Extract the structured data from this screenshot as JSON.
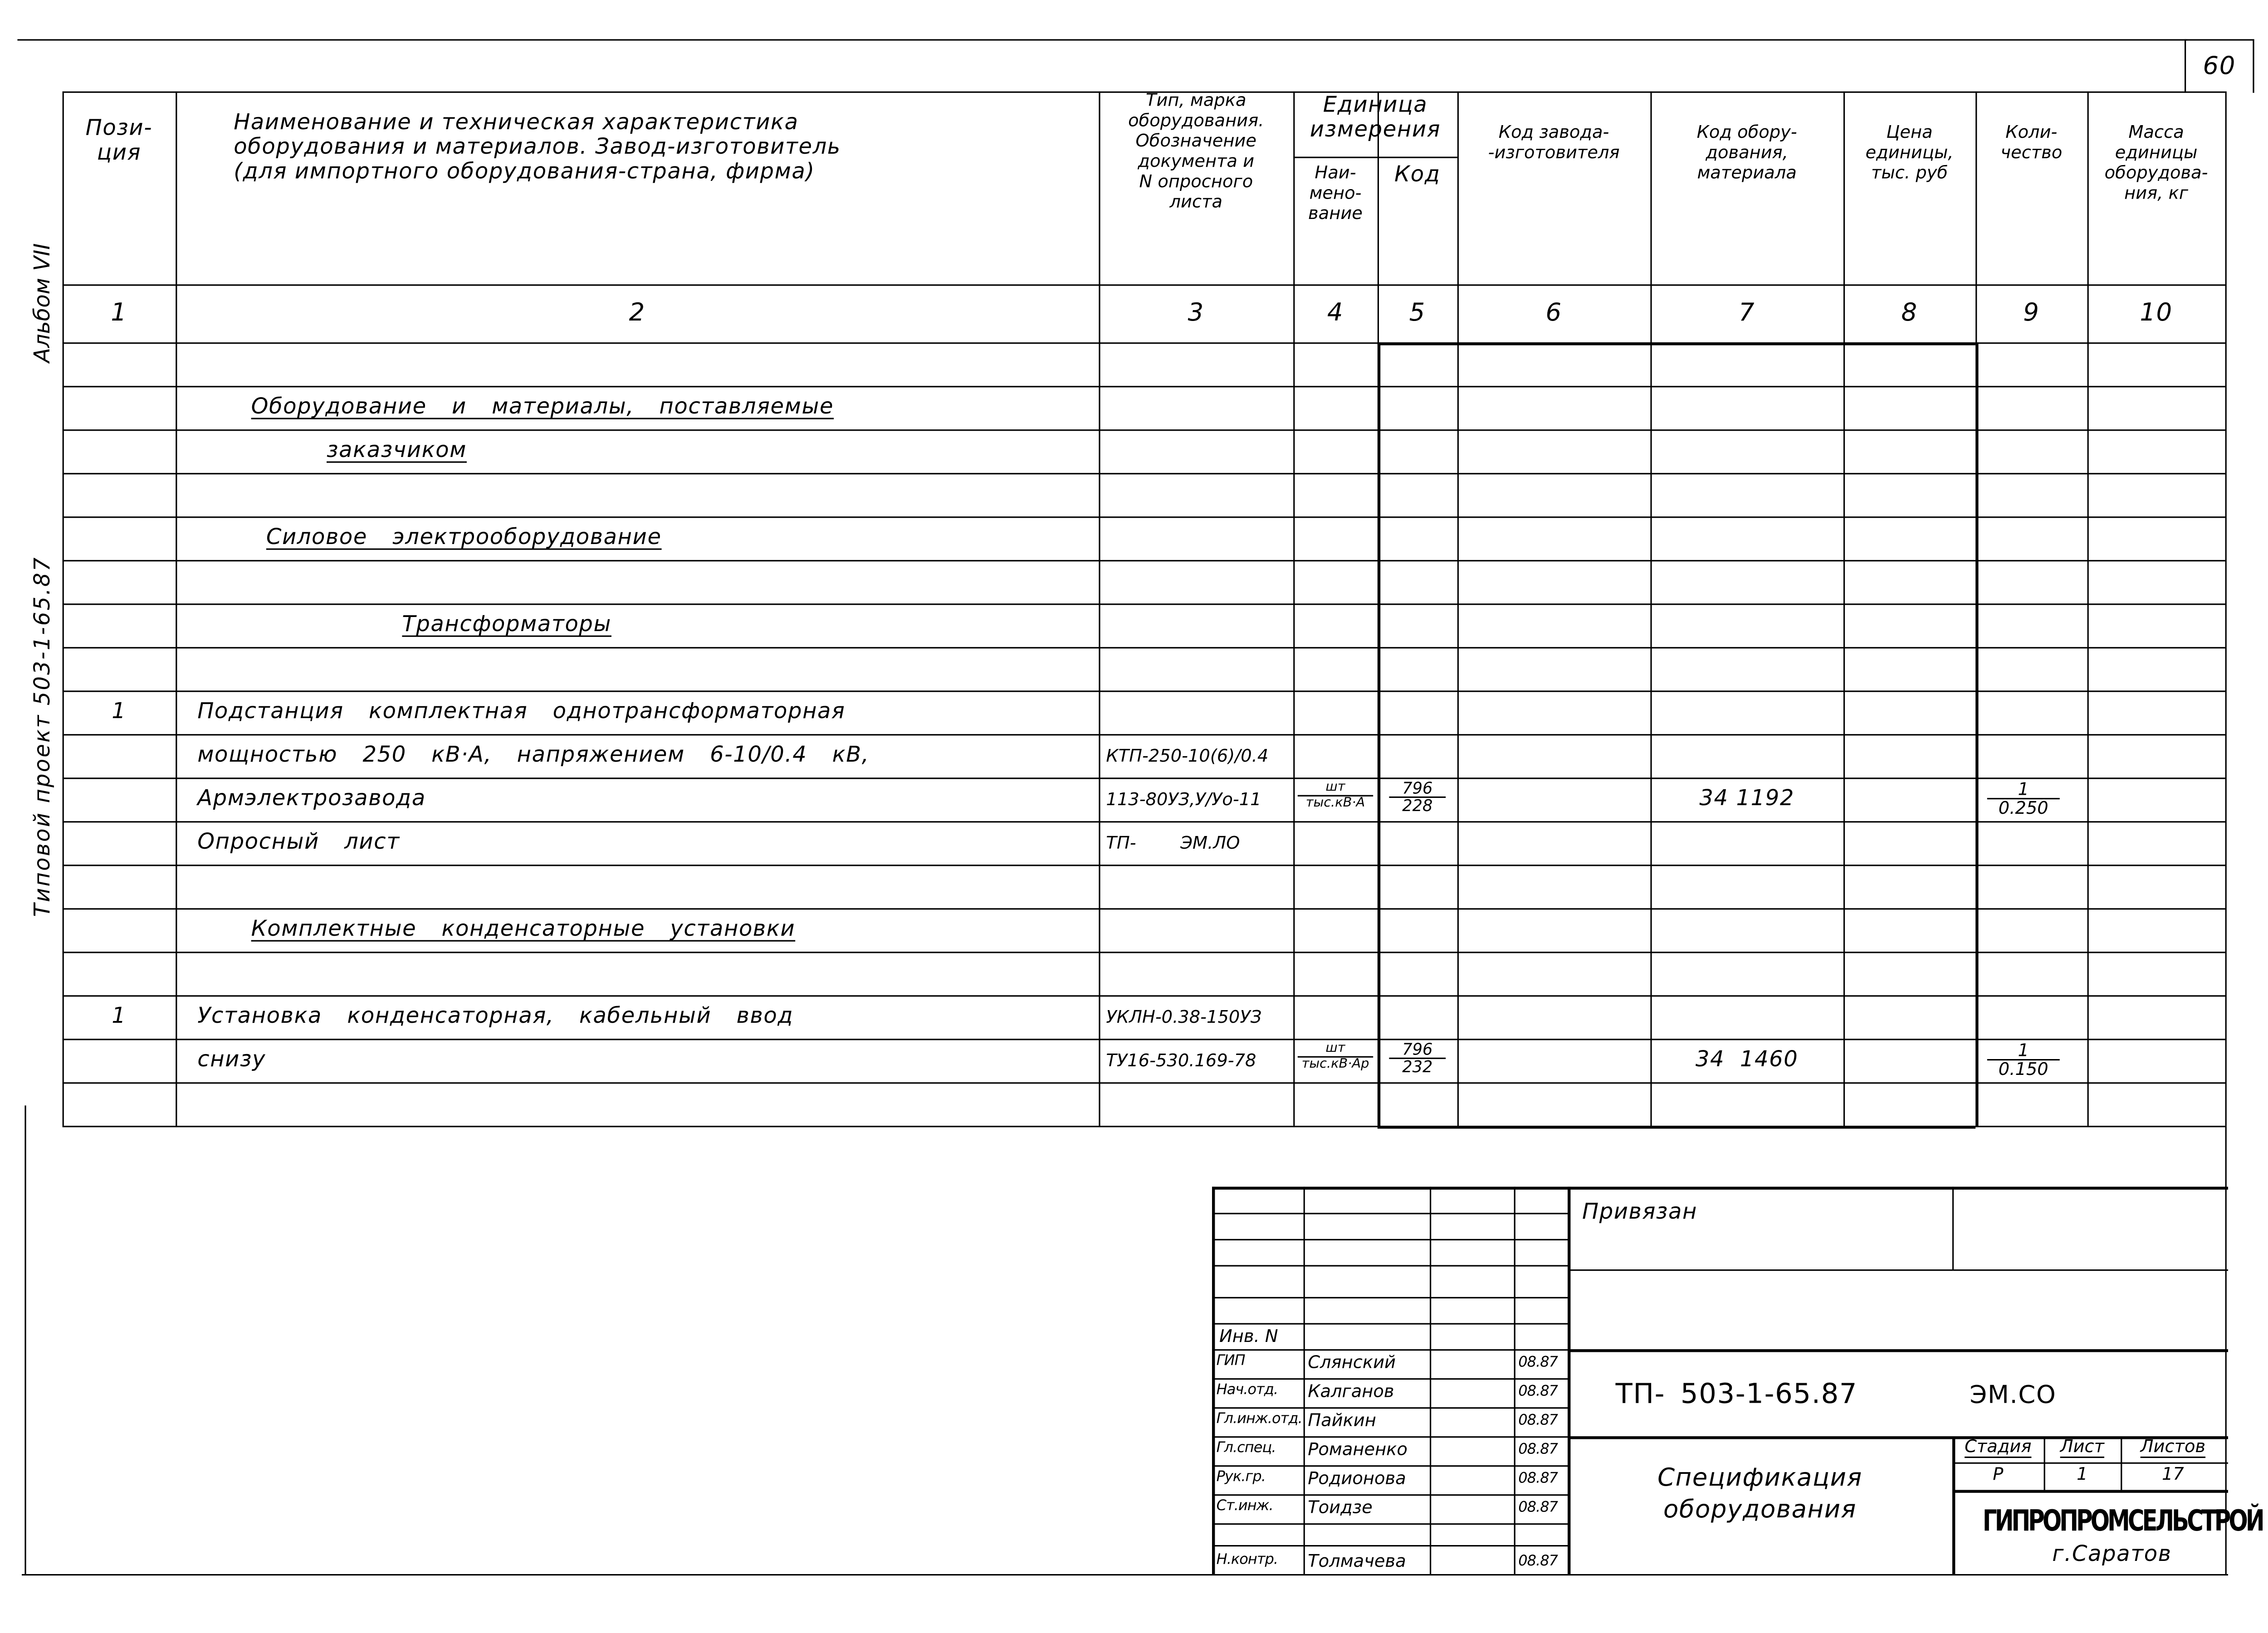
{
  "sheet_number": "60",
  "margin": {
    "album": "Альбом VII",
    "project": "Типовой проект 503-1-65.87"
  },
  "headers": [
    "Пози-\nция",
    "Наименование и техническая характеристика\nоборудования и материалов. Завод-изготовитель\n(для импортного оборудования-страна, фирма)",
    "Тип, марка\nоборудования.\nОбозначение\nдокумента и\nN опросного\nлиста",
    "Единица\nизмерения",
    "Наи-\nмено-\nвание",
    "Код",
    "Код завода-\n-изготовителя",
    "Код обору-\nдования,\nматериала",
    "Цена\nединицы,\nтыс. руб",
    "Коли-\nчество",
    "Масса\nединицы\nоборудова-\nния, кг"
  ],
  "column_numbers": [
    "1",
    "2",
    "3",
    "4",
    "5",
    "6",
    "7",
    "8",
    "9",
    "10"
  ],
  "rows": [
    {},
    {
      "name": "Оборудование и материалы, поставляемые",
      "style": "heading",
      "indent": 1
    },
    {
      "name": "заказчиком",
      "style": "heading",
      "indent": 2
    },
    {},
    {
      "name": "Силовое электрооборудование",
      "style": "heading",
      "indent": 1.2
    },
    {},
    {
      "name": "Трансформаторы",
      "style": "heading",
      "indent": 3
    },
    {},
    {
      "pos": "1",
      "name": "Подстанция комплектная однотрансформаторная"
    },
    {
      "name": "мощностью 250 кВ·А, напряжением 6-10/0.4 кВ,",
      "type": "КТП-250-10(6)/0.4"
    },
    {
      "name": "Армэлектрозавода",
      "type": "113-80УЗ,У/Уо-11",
      "unit": [
        "шт",
        "тыс.кВ·А"
      ],
      "code": [
        "796",
        "228"
      ],
      "equip_code": "34 1192",
      "qty": [
        "1",
        "0.250"
      ]
    },
    {
      "name": "Опросный лист",
      "type": "ТП-        ЭМ.ЛО"
    },
    {},
    {
      "name": "Комплектные конденсаторные установки",
      "style": "heading",
      "indent": 1
    },
    {},
    {
      "pos": "1",
      "name": "Установка конденсаторная, кабельный ввод",
      "type": "УКЛН-0.38-150УЗ"
    },
    {
      "name": "снизу",
      "type": "ТУ16-530.169-78",
      "unit": [
        "шт",
        "тыс.кВ·Ар"
      ],
      "code": [
        "796",
        "232"
      ],
      "equip_code": "34  1460",
      "qty": [
        "1",
        "0.150"
      ]
    },
    {}
  ],
  "title_block": {
    "inv_label": "Инв. N",
    "bound_label": "Привязан",
    "signatures": [
      {
        "role": "ГИП",
        "name": "Слянский",
        "date": "08.87"
      },
      {
        "role": "Нач.отд.",
        "name": "Калганов",
        "date": "08.87"
      },
      {
        "role": "Гл.инж.отд.",
        "name": "Пайкин",
        "date": "08.87"
      },
      {
        "role": "Гл.спец.",
        "name": "Романенко",
        "date": "08.87"
      },
      {
        "role": "Рук.гр.",
        "name": "Родионова",
        "date": "08.87"
      },
      {
        "role": "Ст.инж.",
        "name": "Тоидзе",
        "date": "08.87"
      },
      {
        "role": "",
        "name": "",
        "date": ""
      },
      {
        "role": "Н.контр.",
        "name": "Толмачева",
        "date": "08.87"
      }
    ],
    "designation": "ТП- 503-1-65.87",
    "designation_suffix": "ЭМ.СО",
    "doc_title": "Спецификация\nоборудования",
    "stage_label": "Стадия",
    "sheet_label": "Лист",
    "sheets_label": "Листов",
    "stage": "Р",
    "sheet": "1",
    "sheets": "17",
    "organization": "ГИПРОПРОМСЕЛЬСТРОЙ",
    "city": "г.Саратов"
  }
}
